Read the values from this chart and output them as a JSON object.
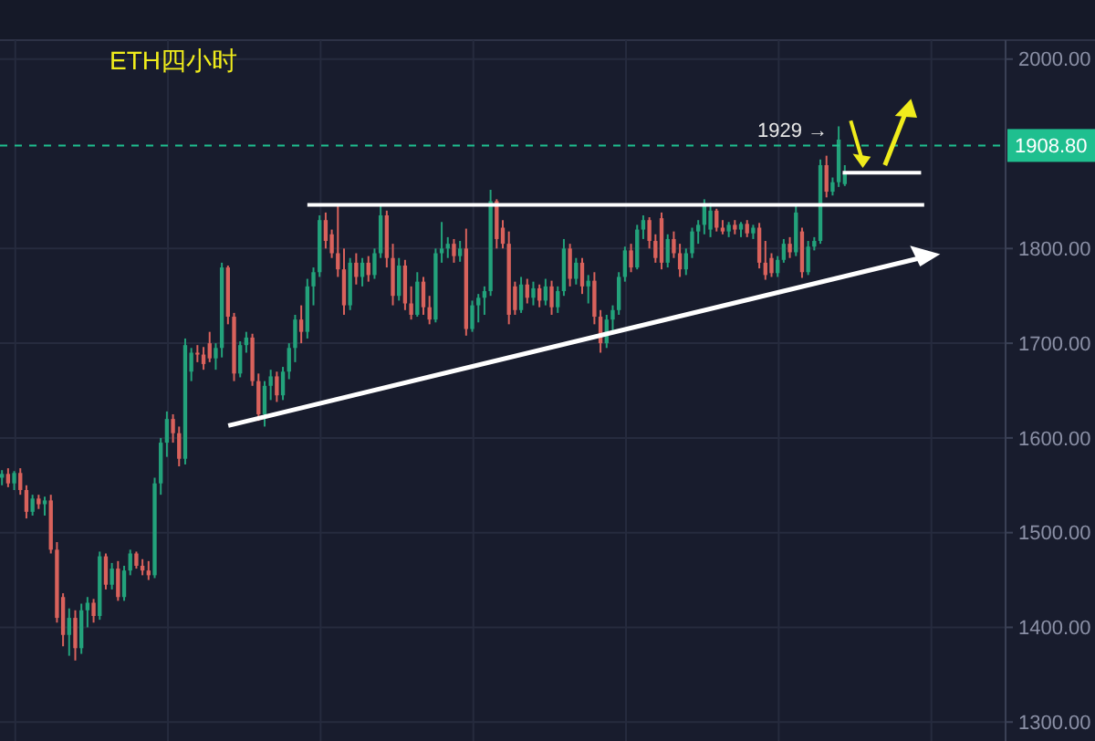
{
  "chart_data": {
    "type": "candlestick",
    "title": "ETH四小时",
    "categories": [
      null,
      null,
      null,
      null,
      null,
      null,
      null,
      null,
      null,
      null,
      null,
      null,
      null,
      null,
      null,
      null,
      null,
      null,
      null,
      null,
      null,
      null,
      null,
      null,
      null,
      null,
      null,
      null,
      null,
      null,
      null,
      null,
      null,
      null,
      null,
      null,
      null,
      null,
      null,
      null,
      null,
      null,
      null,
      null,
      null,
      null,
      null,
      null,
      null,
      null,
      null,
      null,
      null,
      null,
      null,
      null,
      null,
      null,
      null,
      null,
      null,
      null,
      null,
      null,
      null,
      null,
      null,
      null,
      null,
      null,
      null,
      null,
      null,
      null,
      null,
      null,
      null,
      null,
      null,
      null,
      null,
      null,
      null,
      null,
      null,
      null,
      null,
      null,
      null,
      null,
      null,
      null,
      null,
      null,
      null,
      null,
      null,
      null,
      null,
      null,
      null,
      null,
      null,
      null,
      null,
      null,
      null,
      null,
      null,
      null,
      null,
      null,
      null,
      null,
      null,
      null,
      null,
      null,
      null,
      null,
      null,
      null,
      null,
      null,
      null,
      null,
      null,
      null,
      null,
      null,
      null,
      null,
      null,
      null,
      null,
      null,
      null,
      null,
      null,
      null,
      null,
      null,
      null,
      null,
      null,
      null,
      null,
      null,
      null,
      null,
      null,
      null,
      null,
      null,
      null,
      null,
      null,
      null,
      null,
      null,
      null,
      null,
      null,
      null,
      null
    ],
    "ohlc": [
      [
        1558,
        1566,
        1550,
        1562
      ],
      [
        1562,
        1568,
        1548,
        1552
      ],
      [
        1552,
        1565,
        1545,
        1563
      ],
      [
        1563,
        1568,
        1540,
        1545
      ],
      [
        1545,
        1550,
        1515,
        1522
      ],
      [
        1522,
        1540,
        1518,
        1536
      ],
      [
        1536,
        1540,
        1525,
        1530
      ],
      [
        1530,
        1538,
        1518,
        1534
      ],
      [
        1534,
        1540,
        1478,
        1482
      ],
      [
        1482,
        1490,
        1405,
        1410
      ],
      [
        1432,
        1436,
        1380,
        1392
      ],
      [
        1392,
        1420,
        1370,
        1410
      ],
      [
        1410,
        1418,
        1365,
        1378
      ],
      [
        1378,
        1425,
        1372,
        1418
      ],
      [
        1418,
        1432,
        1400,
        1426
      ],
      [
        1426,
        1430,
        1405,
        1412
      ],
      [
        1412,
        1480,
        1408,
        1475
      ],
      [
        1475,
        1478,
        1440,
        1445
      ],
      [
        1445,
        1468,
        1440,
        1462
      ],
      [
        1462,
        1470,
        1428,
        1432
      ],
      [
        1432,
        1465,
        1428,
        1460
      ],
      [
        1460,
        1482,
        1455,
        1478
      ],
      [
        1478,
        1480,
        1462,
        1465
      ],
      [
        1465,
        1472,
        1455,
        1460
      ],
      [
        1460,
        1470,
        1450,
        1455
      ],
      [
        1455,
        1558,
        1452,
        1552
      ],
      [
        1552,
        1600,
        1540,
        1595
      ],
      [
        1595,
        1628,
        1580,
        1620
      ],
      [
        1620,
        1625,
        1595,
        1605
      ],
      [
        1605,
        1612,
        1570,
        1578
      ],
      [
        1578,
        1705,
        1572,
        1698
      ],
      [
        1670,
        1695,
        1660,
        1690
      ],
      [
        1690,
        1698,
        1680,
        1688
      ],
      [
        1688,
        1696,
        1672,
        1678
      ],
      [
        1700,
        1712,
        1680,
        1684
      ],
      [
        1684,
        1700,
        1672,
        1695
      ],
      [
        1695,
        1785,
        1685,
        1780
      ],
      [
        1780,
        1782,
        1720,
        1728
      ],
      [
        1728,
        1732,
        1660,
        1668
      ],
      [
        1668,
        1702,
        1664,
        1698
      ],
      [
        1698,
        1712,
        1690,
        1706
      ],
      [
        1706,
        1710,
        1655,
        1660
      ],
      [
        1660,
        1668,
        1618,
        1625
      ],
      [
        1625,
        1660,
        1612,
        1655
      ],
      [
        1655,
        1672,
        1640,
        1665
      ],
      [
        1665,
        1670,
        1638,
        1645
      ],
      [
        1645,
        1675,
        1640,
        1670
      ],
      [
        1670,
        1700,
        1662,
        1695
      ],
      [
        1695,
        1730,
        1680,
        1725
      ],
      [
        1725,
        1740,
        1700,
        1712
      ],
      [
        1712,
        1768,
        1705,
        1760
      ],
      [
        1760,
        1780,
        1740,
        1775
      ],
      [
        1775,
        1835,
        1770,
        1830
      ],
      [
        1830,
        1838,
        1800,
        1808
      ],
      [
        1815,
        1820,
        1790,
        1795
      ],
      [
        1795,
        1846,
        1770,
        1778
      ],
      [
        1778,
        1800,
        1730,
        1740
      ],
      [
        1740,
        1790,
        1735,
        1785
      ],
      [
        1785,
        1795,
        1762,
        1770
      ],
      [
        1770,
        1790,
        1760,
        1785
      ],
      [
        1785,
        1792,
        1765,
        1772
      ],
      [
        1772,
        1800,
        1768,
        1795
      ],
      [
        1795,
        1845,
        1790,
        1835
      ],
      [
        1835,
        1840,
        1780,
        1790
      ],
      [
        1790,
        1805,
        1740,
        1750
      ],
      [
        1750,
        1790,
        1745,
        1782
      ],
      [
        1782,
        1788,
        1735,
        1742
      ],
      [
        1742,
        1760,
        1725,
        1730
      ],
      [
        1730,
        1775,
        1728,
        1765
      ],
      [
        1765,
        1770,
        1730,
        1738
      ],
      [
        1738,
        1750,
        1720,
        1725
      ],
      [
        1725,
        1800,
        1722,
        1795
      ],
      [
        1795,
        1828,
        1785,
        1800
      ],
      [
        1800,
        1812,
        1790,
        1805
      ],
      [
        1805,
        1810,
        1785,
        1792
      ],
      [
        1792,
        1808,
        1786,
        1800
      ],
      [
        1800,
        1821,
        1708,
        1715
      ],
      [
        1715,
        1745,
        1712,
        1740
      ],
      [
        1740,
        1752,
        1722,
        1748
      ],
      [
        1748,
        1760,
        1730,
        1755
      ],
      [
        1755,
        1862,
        1750,
        1850
      ],
      [
        1850,
        1852,
        1800,
        1810
      ],
      [
        1822,
        1830,
        1800,
        1805
      ],
      [
        1805,
        1818,
        1720,
        1730
      ],
      [
        1760,
        1765,
        1730,
        1735
      ],
      [
        1735,
        1770,
        1732,
        1762
      ],
      [
        1762,
        1768,
        1742,
        1748
      ],
      [
        1748,
        1765,
        1740,
        1758
      ],
      [
        1758,
        1762,
        1738,
        1745
      ],
      [
        1745,
        1768,
        1740,
        1760
      ],
      [
        1760,
        1766,
        1730,
        1738
      ],
      [
        1738,
        1760,
        1732,
        1755
      ],
      [
        1755,
        1810,
        1750,
        1800
      ],
      [
        1800,
        1805,
        1760,
        1768
      ],
      [
        1768,
        1790,
        1762,
        1785
      ],
      [
        1785,
        1790,
        1752,
        1760
      ],
      [
        1760,
        1772,
        1742,
        1766
      ],
      [
        1766,
        1775,
        1720,
        1728
      ],
      [
        1728,
        1735,
        1690,
        1700
      ],
      [
        1700,
        1730,
        1695,
        1725
      ],
      [
        1725,
        1740,
        1712,
        1735
      ],
      [
        1735,
        1775,
        1730,
        1770
      ],
      [
        1770,
        1802,
        1765,
        1798
      ],
      [
        1798,
        1805,
        1775,
        1780
      ],
      [
        1780,
        1825,
        1778,
        1820
      ],
      [
        1820,
        1835,
        1810,
        1830
      ],
      [
        1830,
        1833,
        1800,
        1808
      ],
      [
        1808,
        1815,
        1785,
        1790
      ],
      [
        1832,
        1838,
        1778,
        1785
      ],
      [
        1785,
        1815,
        1780,
        1810
      ],
      [
        1810,
        1818,
        1790,
        1795
      ],
      [
        1795,
        1805,
        1770,
        1778
      ],
      [
        1778,
        1800,
        1772,
        1795
      ],
      [
        1795,
        1822,
        1790,
        1818
      ],
      [
        1818,
        1830,
        1805,
        1825
      ],
      [
        1825,
        1852,
        1815,
        1845
      ],
      [
        1820,
        1848,
        1812,
        1840
      ],
      [
        1840,
        1842,
        1818,
        1822
      ],
      [
        1822,
        1830,
        1815,
        1818
      ],
      [
        1818,
        1828,
        1812,
        1825
      ],
      [
        1825,
        1830,
        1815,
        1820
      ],
      [
        1820,
        1828,
        1812,
        1826
      ],
      [
        1826,
        1830,
        1812,
        1816
      ],
      [
        1816,
        1825,
        1810,
        1822
      ],
      [
        1822,
        1827,
        1779,
        1785
      ],
      [
        1785,
        1808,
        1767,
        1772
      ],
      [
        1790,
        1795,
        1770,
        1774
      ],
      [
        1774,
        1792,
        1770,
        1788
      ],
      [
        1788,
        1810,
        1785,
        1805
      ],
      [
        1805,
        1812,
        1790,
        1796
      ],
      [
        1796,
        1845,
        1792,
        1838
      ],
      [
        1818,
        1822,
        1769,
        1775
      ],
      [
        1775,
        1808,
        1772,
        1802
      ],
      [
        1802,
        1812,
        1798,
        1808
      ],
      [
        1808,
        1894,
        1805,
        1888
      ],
      [
        1888,
        1898,
        1854,
        1860
      ],
      [
        1860,
        1875,
        1856,
        1870
      ],
      [
        1870,
        1929,
        1865,
        1915
      ],
      [
        1868,
        1888,
        1866,
        1880
      ],
      null,
      null,
      null,
      null,
      null,
      null,
      null,
      null,
      null,
      null,
      null,
      null,
      null,
      null,
      null,
      null,
      null,
      null,
      null,
      null,
      null,
      null,
      null,
      null,
      null,
      null
    ],
    "series": [
      {
        "type": "line",
        "color": "#ffffff",
        "values": [
          null,
          null,
          null,
          null,
          null,
          null,
          null,
          null,
          null,
          null,
          null,
          null,
          null,
          null,
          null,
          null,
          null,
          null,
          null,
          null,
          null,
          null,
          null,
          null,
          null,
          null,
          null,
          null,
          null,
          null,
          null,
          null,
          null,
          null,
          null,
          null,
          null,
          null,
          null,
          null,
          null,
          null,
          null,
          null,
          null,
          null,
          null,
          null,
          null,
          null,
          1846,
          1846,
          1846,
          1846,
          1846,
          1846,
          1846,
          1846,
          1846,
          1846,
          1846,
          1846,
          1846,
          1846,
          1846,
          1846,
          1846,
          1846,
          1846,
          1846,
          1846,
          1846,
          1846,
          1846,
          1846,
          1846,
          1846,
          1846,
          1846,
          1846,
          1846,
          1846,
          1846,
          1846,
          1846,
          1846,
          1846,
          1846,
          1846,
          1846,
          1846,
          1846,
          1846,
          1846,
          1846,
          1846,
          1846,
          1846,
          1846,
          1846,
          1846,
          1846,
          1846,
          1846,
          1846,
          1846,
          1846,
          1846,
          1846,
          1846,
          1846,
          1846,
          1846,
          1846,
          1846,
          1846,
          1846,
          1846,
          1846,
          1846,
          1846,
          1846,
          1846,
          1846,
          1846,
          1846,
          1846,
          1846,
          1846,
          1846,
          1846,
          1846,
          1846,
          1846,
          1846,
          1846,
          1846,
          1846,
          1846,
          1846,
          1846,
          1846,
          1846,
          1846,
          1846,
          1846,
          1846,
          1846,
          1846,
          1846,
          1846,
          1846,
          null,
          null,
          null,
          null,
          null,
          null,
          null,
          null,
          null,
          null,
          null,
          null,
          null
        ]
      }
    ],
    "ylim": [
      1280,
      2020
    ],
    "yticks": [
      {
        "value": 1300,
        "label": "1300.00"
      },
      {
        "value": 1400,
        "label": "1400.00"
      },
      {
        "value": 1500,
        "label": "1500.00"
      },
      {
        "value": 1600,
        "label": "1600.00"
      },
      {
        "value": 1700,
        "label": "1700.00"
      },
      {
        "value": 1800,
        "label": "1800.00"
      },
      {
        "value": 2000,
        "label": "2000.00"
      }
    ],
    "ref_lines": [
      {
        "axis": "y",
        "value": 1908.8,
        "label": "1908.80",
        "color": "#1fbf8f",
        "line_style": "dashed"
      }
    ],
    "annotations": [
      "1929 →"
    ],
    "grid": true,
    "tick_labels": "y"
  }
}
